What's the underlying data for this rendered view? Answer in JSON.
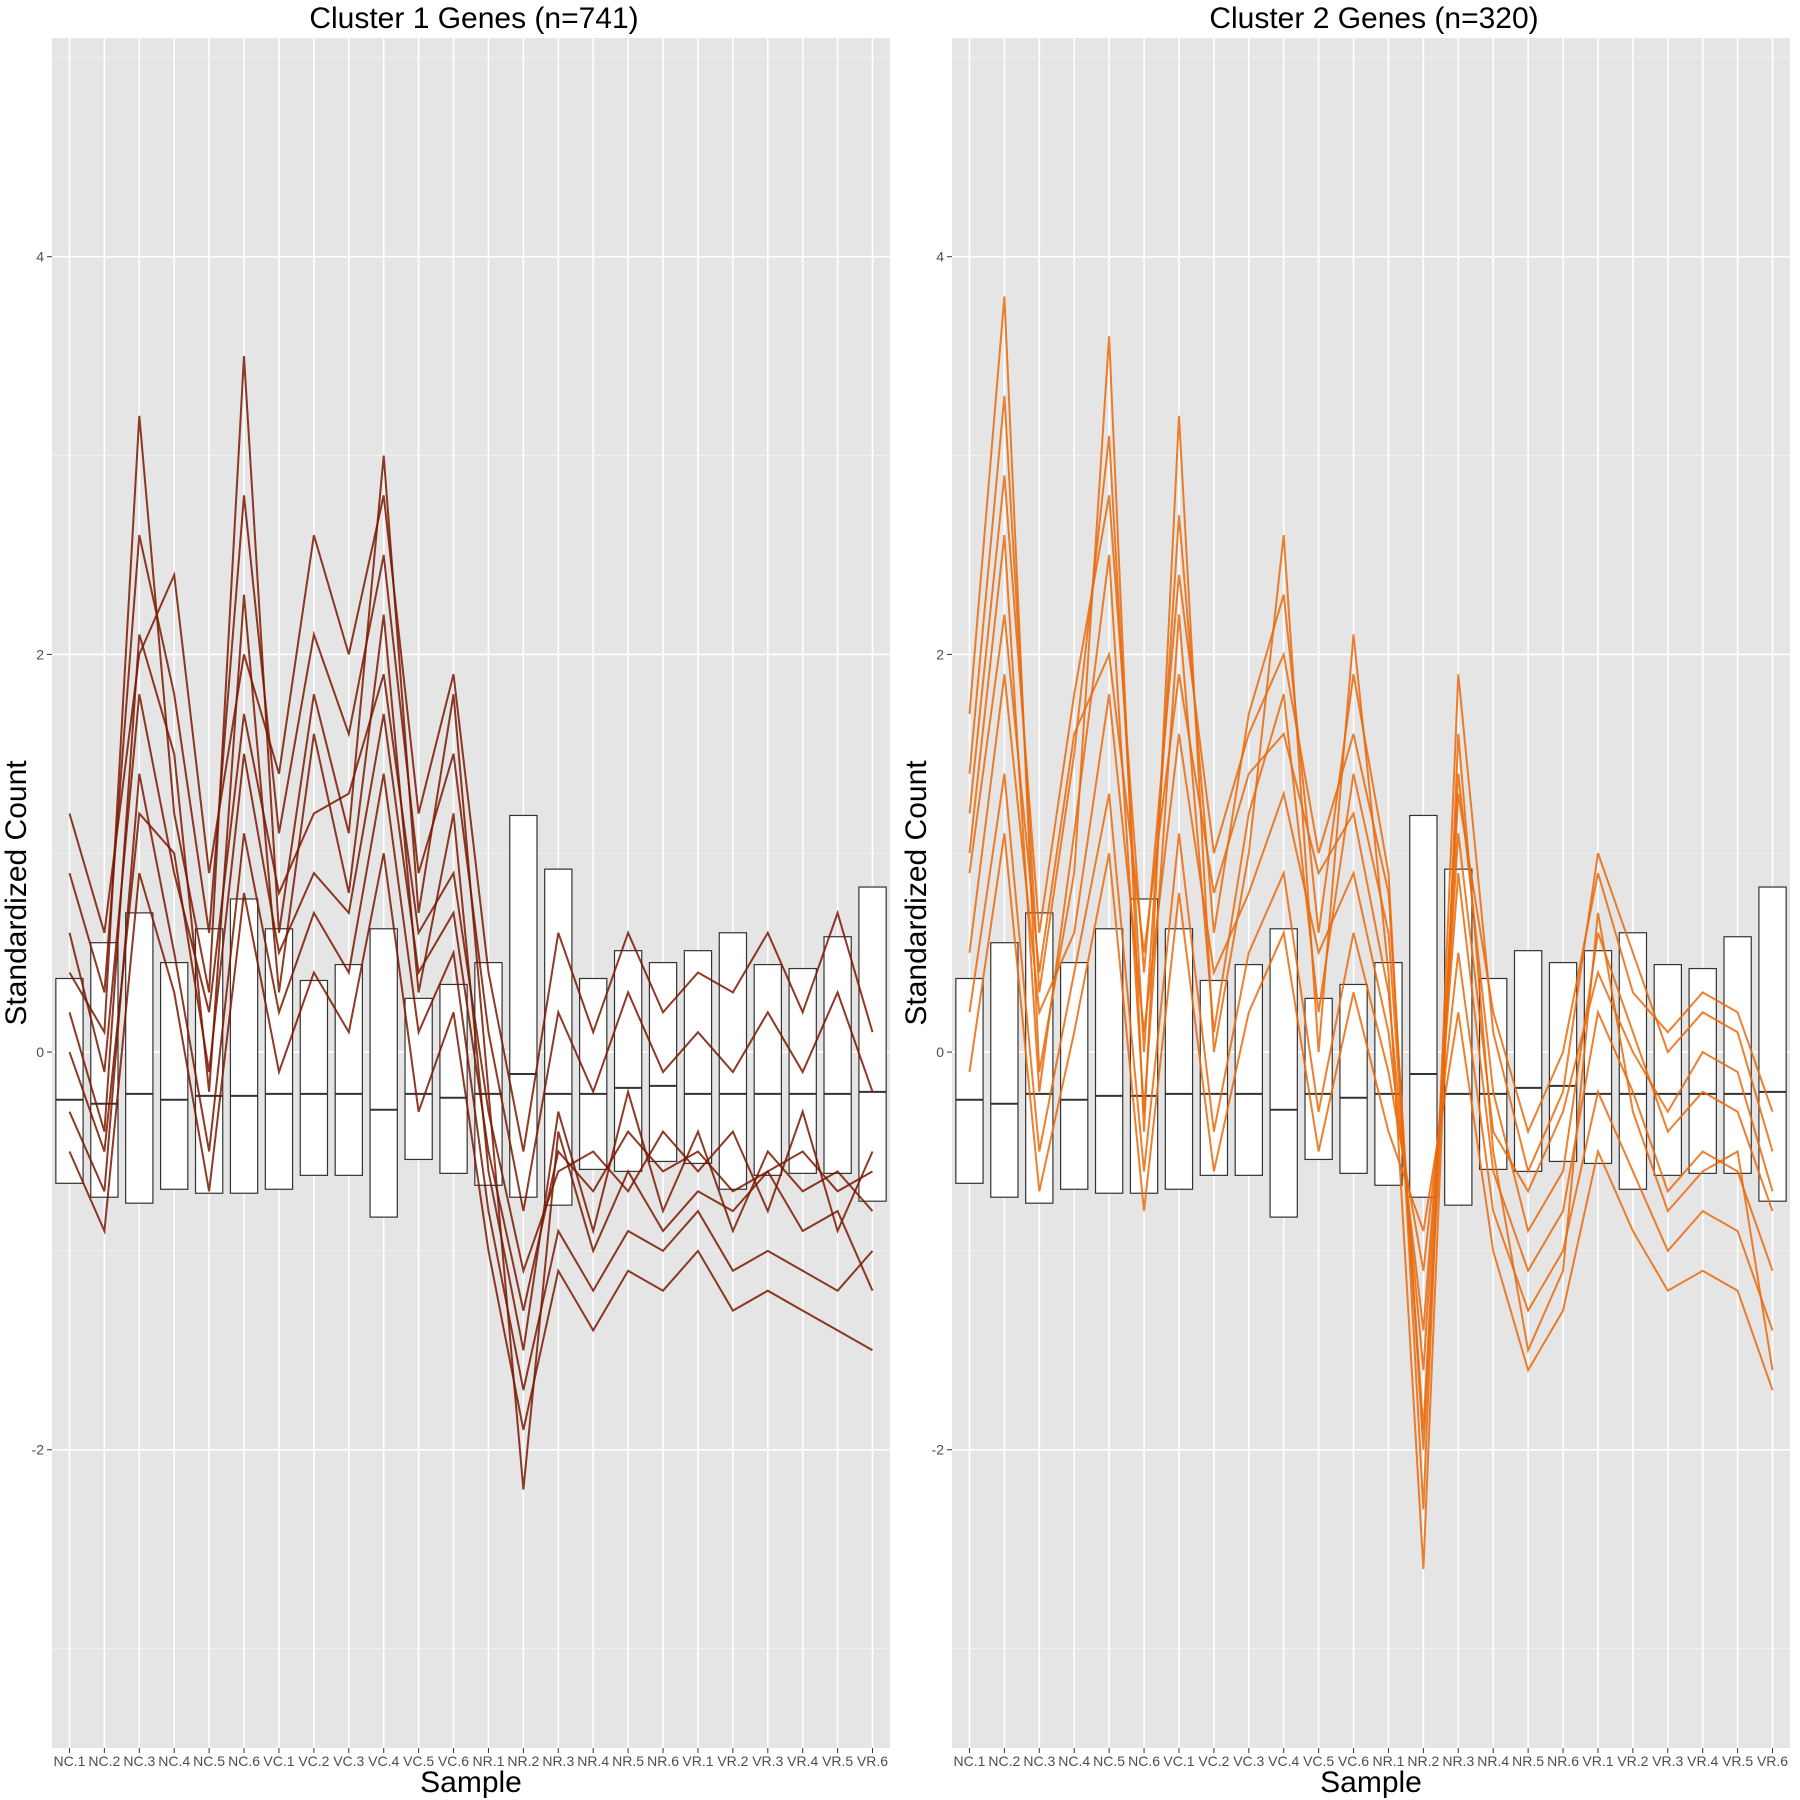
{
  "chart_data": [
    {
      "type": "line",
      "subtype": "parallel coordinates with boxplots",
      "title": "Cluster 1 Genes (n=741)",
      "xlabel": "Sample",
      "ylabel": "Standardized Count",
      "categories": [
        "NC.1",
        "NC.2",
        "NC.3",
        "NC.4",
        "NC.5",
        "NC.6",
        "VC.1",
        "VC.2",
        "VC.3",
        "VC.4",
        "VC.5",
        "VC.6",
        "NR.1",
        "NR.2",
        "NR.3",
        "NR.4",
        "NR.5",
        "NR.6",
        "VR.1",
        "VR.2",
        "VR.3",
        "VR.4",
        "VR.5",
        "VR.6"
      ],
      "yticks": [
        -2,
        0,
        2,
        4
      ],
      "ytick_labels": [
        "-2",
        "0",
        "2",
        "4"
      ],
      "ylim": [
        -3.5,
        5.1
      ],
      "grid": true,
      "line_color": "#7a1800",
      "series": [
        {
          "values": [
            0.2,
            -0.4,
            2.1,
            1.5,
            -0.2,
            2.3,
            0.3,
            1.6,
            0.8,
            2.2,
            0.3,
            1.2,
            -0.6,
            -1.5,
            -0.3,
            -0.9,
            -0.2,
            -0.8,
            -0.4,
            -0.9,
            -0.5,
            -0.7,
            -0.6,
            -0.8
          ]
        },
        {
          "values": [
            0.6,
            -0.1,
            1.8,
            0.9,
            0.2,
            1.7,
            0.8,
            1.2,
            1.3,
            1.9,
            0.6,
            0.9,
            -0.3,
            -1.1,
            -0.6,
            -0.5,
            -0.7,
            -0.4,
            -0.6,
            -0.4,
            -0.8,
            -0.3,
            -0.9,
            -0.5
          ]
        },
        {
          "values": [
            -0.3,
            -0.7,
            1.4,
            0.5,
            -0.5,
            1.1,
            0.2,
            0.7,
            0.4,
            1.4,
            0.1,
            0.5,
            -0.8,
            -1.7,
            -0.9,
            -1.2,
            -0.9,
            -1.0,
            -0.8,
            -1.1,
            -1.0,
            -1.1,
            -1.2,
            -1.0
          ]
        },
        {
          "values": [
            0.9,
            0.3,
            2.6,
            1.8,
            0.6,
            2.8,
            1.1,
            2.1,
            1.6,
            2.5,
            0.9,
            1.5,
            0.1,
            -0.8,
            0.2,
            -0.2,
            0.3,
            -0.1,
            0.1,
            -0.1,
            0.2,
            -0.1,
            0.3,
            -0.2
          ]
        },
        {
          "values": [
            0.0,
            -0.5,
            1.2,
            1.0,
            -0.1,
            1.5,
            0.5,
            0.9,
            0.7,
            1.7,
            0.4,
            0.7,
            -0.5,
            -1.3,
            -0.5,
            -0.7,
            -0.4,
            -0.6,
            -0.5,
            -0.7,
            -0.6,
            -0.5,
            -0.7,
            -0.6
          ]
        },
        {
          "values": [
            0.4,
            0.1,
            3.2,
            1.2,
            0.3,
            3.5,
            0.6,
            1.8,
            1.1,
            3.0,
            0.7,
            1.8,
            -0.2,
            -2.2,
            -0.4,
            -1.0,
            -0.6,
            -0.9,
            -0.7,
            -0.8,
            -0.6,
            -0.9,
            -0.8,
            -1.2
          ]
        },
        {
          "values": [
            -0.5,
            -0.9,
            0.9,
            0.3,
            -0.7,
            0.8,
            -0.1,
            0.4,
            0.1,
            1.0,
            -0.3,
            0.2,
            -1.0,
            -1.9,
            -1.1,
            -1.4,
            -1.1,
            -1.2,
            -1.0,
            -1.3,
            -1.2,
            -1.3,
            -1.4,
            -1.5
          ]
        },
        {
          "values": [
            1.2,
            0.6,
            2.0,
            2.4,
            0.9,
            2.0,
            1.4,
            2.6,
            2.0,
            2.8,
            1.2,
            1.9,
            0.4,
            -0.5,
            0.6,
            0.1,
            0.6,
            0.2,
            0.4,
            0.3,
            0.6,
            0.2,
            0.7,
            0.1
          ]
        }
      ],
      "boxplots": [
        {
          "name": "NC.1",
          "median": -0.24,
          "q1": -0.66,
          "q3": 0.37
        },
        {
          "name": "NC.2",
          "median": -0.26,
          "q1": -0.73,
          "q3": 0.55
        },
        {
          "name": "NC.3",
          "median": -0.21,
          "q1": -0.76,
          "q3": 0.7
        },
        {
          "name": "NC.4",
          "median": -0.24,
          "q1": -0.69,
          "q3": 0.45
        },
        {
          "name": "NC.5",
          "median": -0.22,
          "q1": -0.71,
          "q3": 0.62
        },
        {
          "name": "NC.6",
          "median": -0.22,
          "q1": -0.71,
          "q3": 0.77
        },
        {
          "name": "VC.1",
          "median": -0.21,
          "q1": -0.69,
          "q3": 0.62
        },
        {
          "name": "VC.2",
          "median": -0.21,
          "q1": -0.62,
          "q3": 0.36
        },
        {
          "name": "VC.3",
          "median": -0.21,
          "q1": -0.62,
          "q3": 0.44
        },
        {
          "name": "VC.4",
          "median": -0.29,
          "q1": -0.83,
          "q3": 0.62
        },
        {
          "name": "VC.5",
          "median": -0.21,
          "q1": -0.54,
          "q3": 0.27
        },
        {
          "name": "VC.6",
          "median": -0.23,
          "q1": -0.61,
          "q3": 0.34
        },
        {
          "name": "NR.1",
          "median": -0.21,
          "q1": -0.67,
          "q3": 0.45
        },
        {
          "name": "NR.2",
          "median": -0.11,
          "q1": -0.73,
          "q3": 1.19
        },
        {
          "name": "NR.3",
          "median": -0.21,
          "q1": -0.77,
          "q3": 0.92
        },
        {
          "name": "NR.4",
          "median": -0.21,
          "q1": -0.59,
          "q3": 0.37
        },
        {
          "name": "NR.5",
          "median": -0.18,
          "q1": -0.6,
          "q3": 0.51
        },
        {
          "name": "NR.6",
          "median": -0.17,
          "q1": -0.55,
          "q3": 0.45
        },
        {
          "name": "VR.1",
          "median": -0.21,
          "q1": -0.56,
          "q3": 0.51
        },
        {
          "name": "VR.2",
          "median": -0.21,
          "q1": -0.69,
          "q3": 0.6
        },
        {
          "name": "VR.3",
          "median": -0.21,
          "q1": -0.62,
          "q3": 0.44
        },
        {
          "name": "VR.4",
          "median": -0.21,
          "q1": -0.61,
          "q3": 0.42
        },
        {
          "name": "VR.5",
          "median": -0.21,
          "q1": -0.61,
          "q3": 0.58
        },
        {
          "name": "VR.6",
          "median": -0.2,
          "q1": -0.75,
          "q3": 0.83
        }
      ]
    },
    {
      "type": "line",
      "subtype": "parallel coordinates with boxplots",
      "title": "Cluster 2 Genes (n=320)",
      "xlabel": "Sample",
      "ylabel": "Standardized Count",
      "categories": [
        "NC.1",
        "NC.2",
        "NC.3",
        "NC.4",
        "NC.5",
        "NC.6",
        "VC.1",
        "VC.2",
        "VC.3",
        "VC.4",
        "VC.5",
        "VC.6",
        "NR.1",
        "NR.2",
        "NR.3",
        "NR.4",
        "NR.5",
        "NR.6",
        "VR.1",
        "VR.2",
        "VR.3",
        "VR.4",
        "VR.5",
        "VR.6"
      ],
      "yticks": [
        -2,
        0,
        2,
        4
      ],
      "ytick_labels": [
        "-2",
        "0",
        "2",
        "4"
      ],
      "ylim": [
        -3.5,
        5.1
      ],
      "grid": true,
      "line_color": "#ea6a0a",
      "series": [
        {
          "values": [
            1.0,
            2.6,
            -0.2,
            1.1,
            2.5,
            -0.3,
            2.2,
            0.1,
            1.2,
            1.8,
            0.2,
            1.4,
            0.6,
            -1.9,
            1.4,
            -0.2,
            -0.9,
            -0.6,
            0.6,
            0.1,
            -0.4,
            -0.2,
            -0.3,
            -0.8
          ]
        },
        {
          "values": [
            0.5,
            1.9,
            0.2,
            0.6,
            1.8,
            0.1,
            1.6,
            0.4,
            0.8,
            1.3,
            0.5,
            0.9,
            0.1,
            -1.4,
            0.9,
            -0.6,
            -1.1,
            -0.8,
            0.2,
            -0.2,
            -0.7,
            -0.5,
            -0.6,
            -1.1
          ]
        },
        {
          "values": [
            1.4,
            3.3,
            0.3,
            1.5,
            3.1,
            0.0,
            2.7,
            0.6,
            1.7,
            2.3,
            0.6,
            1.9,
            0.9,
            -2.3,
            1.9,
            0.1,
            -0.6,
            -0.2,
            1.0,
            0.5,
            0.0,
            0.2,
            0.1,
            -0.5
          ]
        },
        {
          "values": [
            0.2,
            1.4,
            -0.5,
            0.4,
            1.3,
            -0.6,
            1.1,
            -0.4,
            0.5,
            0.9,
            -0.3,
            0.6,
            -0.1,
            -1.1,
            0.5,
            -0.8,
            -1.3,
            -1.0,
            -0.2,
            -0.6,
            -1.0,
            -0.8,
            -0.9,
            -1.4
          ]
        },
        {
          "values": [
            0.9,
            2.2,
            0.4,
            1.6,
            2.0,
            0.5,
            1.9,
            0.8,
            1.4,
            1.6,
            0.9,
            1.2,
            0.3,
            -1.6,
            1.1,
            -0.4,
            -0.7,
            -0.3,
            0.4,
            0.0,
            -0.3,
            0.0,
            -0.1,
            -0.7
          ]
        },
        {
          "values": [
            1.7,
            3.8,
            -0.1,
            0.9,
            3.6,
            -0.4,
            3.2,
            0.0,
            1.0,
            2.6,
            0.0,
            2.1,
            0.4,
            -2.6,
            1.6,
            -0.5,
            -1.5,
            -1.1,
            0.7,
            -0.3,
            -0.8,
            -0.6,
            -0.5,
            -1.6
          ]
        },
        {
          "values": [
            -0.1,
            1.1,
            -0.7,
            0.1,
            1.0,
            -0.8,
            0.8,
            -0.6,
            0.2,
            0.6,
            -0.5,
            0.3,
            -0.4,
            -0.9,
            0.2,
            -1.0,
            -1.6,
            -1.3,
            -0.5,
            -0.9,
            -1.2,
            -1.1,
            -1.2,
            -1.7
          ]
        },
        {
          "values": [
            1.2,
            2.9,
            0.6,
            1.8,
            2.8,
            0.4,
            2.4,
            1.0,
            1.6,
            2.0,
            1.0,
            1.6,
            0.8,
            -2.0,
            1.3,
            0.2,
            -0.4,
            0.0,
            0.9,
            0.3,
            0.1,
            0.3,
            0.2,
            -0.3
          ]
        }
      ],
      "boxplots": [
        {
          "name": "NC.1",
          "median": -0.24,
          "q1": -0.66,
          "q3": 0.37
        },
        {
          "name": "NC.2",
          "median": -0.26,
          "q1": -0.73,
          "q3": 0.55
        },
        {
          "name": "NC.3",
          "median": -0.21,
          "q1": -0.76,
          "q3": 0.7
        },
        {
          "name": "NC.4",
          "median": -0.24,
          "q1": -0.69,
          "q3": 0.45
        },
        {
          "name": "NC.5",
          "median": -0.22,
          "q1": -0.71,
          "q3": 0.62
        },
        {
          "name": "NC.6",
          "median": -0.22,
          "q1": -0.71,
          "q3": 0.77
        },
        {
          "name": "VC.1",
          "median": -0.21,
          "q1": -0.69,
          "q3": 0.62
        },
        {
          "name": "VC.2",
          "median": -0.21,
          "q1": -0.62,
          "q3": 0.36
        },
        {
          "name": "VC.3",
          "median": -0.21,
          "q1": -0.62,
          "q3": 0.44
        },
        {
          "name": "VC.4",
          "median": -0.29,
          "q1": -0.83,
          "q3": 0.62
        },
        {
          "name": "VC.5",
          "median": -0.21,
          "q1": -0.54,
          "q3": 0.27
        },
        {
          "name": "VC.6",
          "median": -0.23,
          "q1": -0.61,
          "q3": 0.34
        },
        {
          "name": "NR.1",
          "median": -0.21,
          "q1": -0.67,
          "q3": 0.45
        },
        {
          "name": "NR.2",
          "median": -0.11,
          "q1": -0.73,
          "q3": 1.19
        },
        {
          "name": "NR.3",
          "median": -0.21,
          "q1": -0.77,
          "q3": 0.92
        },
        {
          "name": "NR.4",
          "median": -0.21,
          "q1": -0.59,
          "q3": 0.37
        },
        {
          "name": "NR.5",
          "median": -0.18,
          "q1": -0.6,
          "q3": 0.51
        },
        {
          "name": "NR.6",
          "median": -0.17,
          "q1": -0.55,
          "q3": 0.45
        },
        {
          "name": "VR.1",
          "median": -0.21,
          "q1": -0.56,
          "q3": 0.51
        },
        {
          "name": "VR.2",
          "median": -0.21,
          "q1": -0.69,
          "q3": 0.6
        },
        {
          "name": "VR.3",
          "median": -0.21,
          "q1": -0.62,
          "q3": 0.44
        },
        {
          "name": "VR.4",
          "median": -0.21,
          "q1": -0.61,
          "q3": 0.42
        },
        {
          "name": "VR.5",
          "median": -0.21,
          "q1": -0.61,
          "q3": 0.58
        },
        {
          "name": "VR.6",
          "median": -0.2,
          "q1": -0.75,
          "q3": 0.83
        }
      ]
    }
  ]
}
